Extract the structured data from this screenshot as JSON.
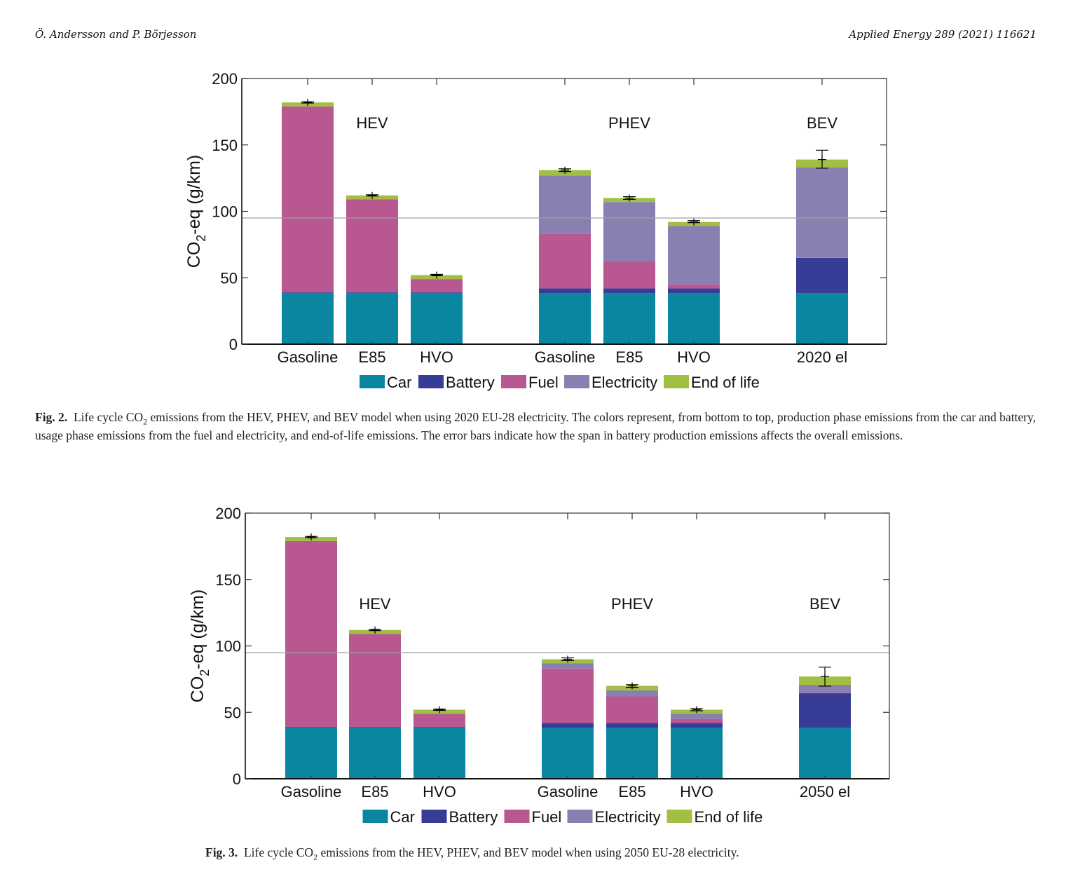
{
  "header": {
    "authors": "Ö. Andersson and P. Börjesson",
    "journal": "Applied Energy 289 (2021) 116621"
  },
  "colors": {
    "Car": "#0b86a1",
    "Battery": "#373d96",
    "Fuel": "#b95791",
    "Electricity": "#8780b1",
    "End of life": "#a1bf43",
    "threshold": "#a0a0a0",
    "axis": "#222222"
  },
  "figures": [
    {
      "id": "fig2",
      "caption": {
        "label": "Fig. 2.",
        "pre": "Life cycle CO",
        "sub": "2",
        "post": " emissions from the HEV, PHEV, and BEV model when using 2020 EU-28 electricity. The colors represent, from bottom to top, production phase emissions from the car and battery, usage phase emissions from the fuel and electricity, and end-of-life emissions. The error bars indicate how the span in battery production emissions affects the overall emissions."
      }
    },
    {
      "id": "fig3",
      "caption": {
        "label": "Fig. 3.",
        "pre": "Life cycle CO",
        "sub": "2",
        "post": " emissions from the HEV, PHEV, and BEV model when using 2050 EU-28 electricity."
      }
    }
  ],
  "chart_data": [
    {
      "type": "bar",
      "stacked": true,
      "title": "",
      "xlabel": "",
      "ylabel": "CO2-eq (g/km)",
      "ylabel_main": "CO",
      "ylabel_sub": "2",
      "ylabel_rest": "-eq (g/km)",
      "ylim": [
        0,
        200
      ],
      "yticks": [
        0,
        50,
        100,
        150,
        200
      ],
      "grid": false,
      "legend": {
        "position": "bottom",
        "entries": [
          "Car",
          "Battery",
          "Fuel",
          "Electricity",
          "End of life"
        ]
      },
      "reference_line": 95,
      "groups": [
        {
          "label": "HEV",
          "categories": [
            "Gasoline",
            "E85",
            "HVO"
          ]
        },
        {
          "label": "PHEV",
          "categories": [
            "Gasoline",
            "E85",
            "HVO"
          ]
        },
        {
          "label": "BEV",
          "categories": [
            "2020 el"
          ]
        }
      ],
      "categories": [
        "Gasoline",
        "E85",
        "HVO",
        "Gasoline",
        "E85",
        "HVO",
        "2020 el"
      ],
      "series": [
        {
          "name": "Car",
          "values": [
            38.5,
            38.5,
            38.5,
            38.5,
            38.5,
            38.5,
            38.5
          ]
        },
        {
          "name": "Battery",
          "values": [
            0.5,
            0.5,
            0.5,
            3.5,
            3.5,
            3.5,
            26.5
          ]
        },
        {
          "name": "Fuel",
          "values": [
            140,
            70,
            10,
            41,
            20,
            3,
            0.3
          ]
        },
        {
          "name": "Electricity",
          "values": [
            0,
            0,
            0,
            44,
            45,
            44,
            67.7
          ]
        },
        {
          "name": "End of life",
          "values": [
            3,
            3,
            3,
            4,
            3,
            3,
            6
          ]
        }
      ],
      "error_bars": [
        {
          "low": 181.5,
          "high": 182.5
        },
        {
          "low": 111.5,
          "high": 112.5
        },
        {
          "low": 51.5,
          "high": 52.5
        },
        {
          "low": 130,
          "high": 132
        },
        {
          "low": 109,
          "high": 111
        },
        {
          "low": 91.5,
          "high": 93
        },
        {
          "low": 132.5,
          "high": 146
        }
      ]
    },
    {
      "type": "bar",
      "stacked": true,
      "title": "",
      "xlabel": "",
      "ylabel": "CO2-eq (g/km)",
      "ylabel_main": "CO",
      "ylabel_sub": "2",
      "ylabel_rest": "-eq (g/km)",
      "ylim": [
        0,
        200
      ],
      "yticks": [
        0,
        50,
        100,
        150,
        200
      ],
      "grid": false,
      "legend": {
        "position": "bottom",
        "entries": [
          "Car",
          "Battery",
          "Fuel",
          "Electricity",
          "End of life"
        ]
      },
      "reference_line": 95,
      "groups": [
        {
          "label": "HEV",
          "categories": [
            "Gasoline",
            "E85",
            "HVO"
          ]
        },
        {
          "label": "PHEV",
          "categories": [
            "Gasoline",
            "E85",
            "HVO"
          ]
        },
        {
          "label": "BEV",
          "categories": [
            "2050 el"
          ]
        }
      ],
      "categories": [
        "Gasoline",
        "E85",
        "HVO",
        "Gasoline",
        "E85",
        "HVO",
        "2050 el"
      ],
      "series": [
        {
          "name": "Car",
          "values": [
            38.5,
            38.5,
            38.5,
            38.5,
            38.5,
            38.5,
            38.5
          ]
        },
        {
          "name": "Battery",
          "values": [
            0.5,
            0.5,
            0.5,
            3.5,
            3.5,
            3.5,
            26
          ]
        },
        {
          "name": "Fuel",
          "values": [
            140,
            70,
            10,
            41,
            20,
            3,
            0.3
          ]
        },
        {
          "name": "Electricity",
          "values": [
            0,
            0,
            0,
            4,
            4.5,
            4,
            5.9
          ]
        },
        {
          "name": "End of life",
          "values": [
            3,
            3,
            3,
            3,
            3.5,
            3,
            6.3
          ]
        }
      ],
      "error_bars": [
        {
          "low": 181.5,
          "high": 182.5
        },
        {
          "low": 111.5,
          "high": 112.5
        },
        {
          "low": 51.5,
          "high": 52.5
        },
        {
          "low": 89,
          "high": 91
        },
        {
          "low": 68.8,
          "high": 70.8
        },
        {
          "low": 51.2,
          "high": 52.8
        },
        {
          "low": 69.7,
          "high": 84
        }
      ]
    }
  ]
}
